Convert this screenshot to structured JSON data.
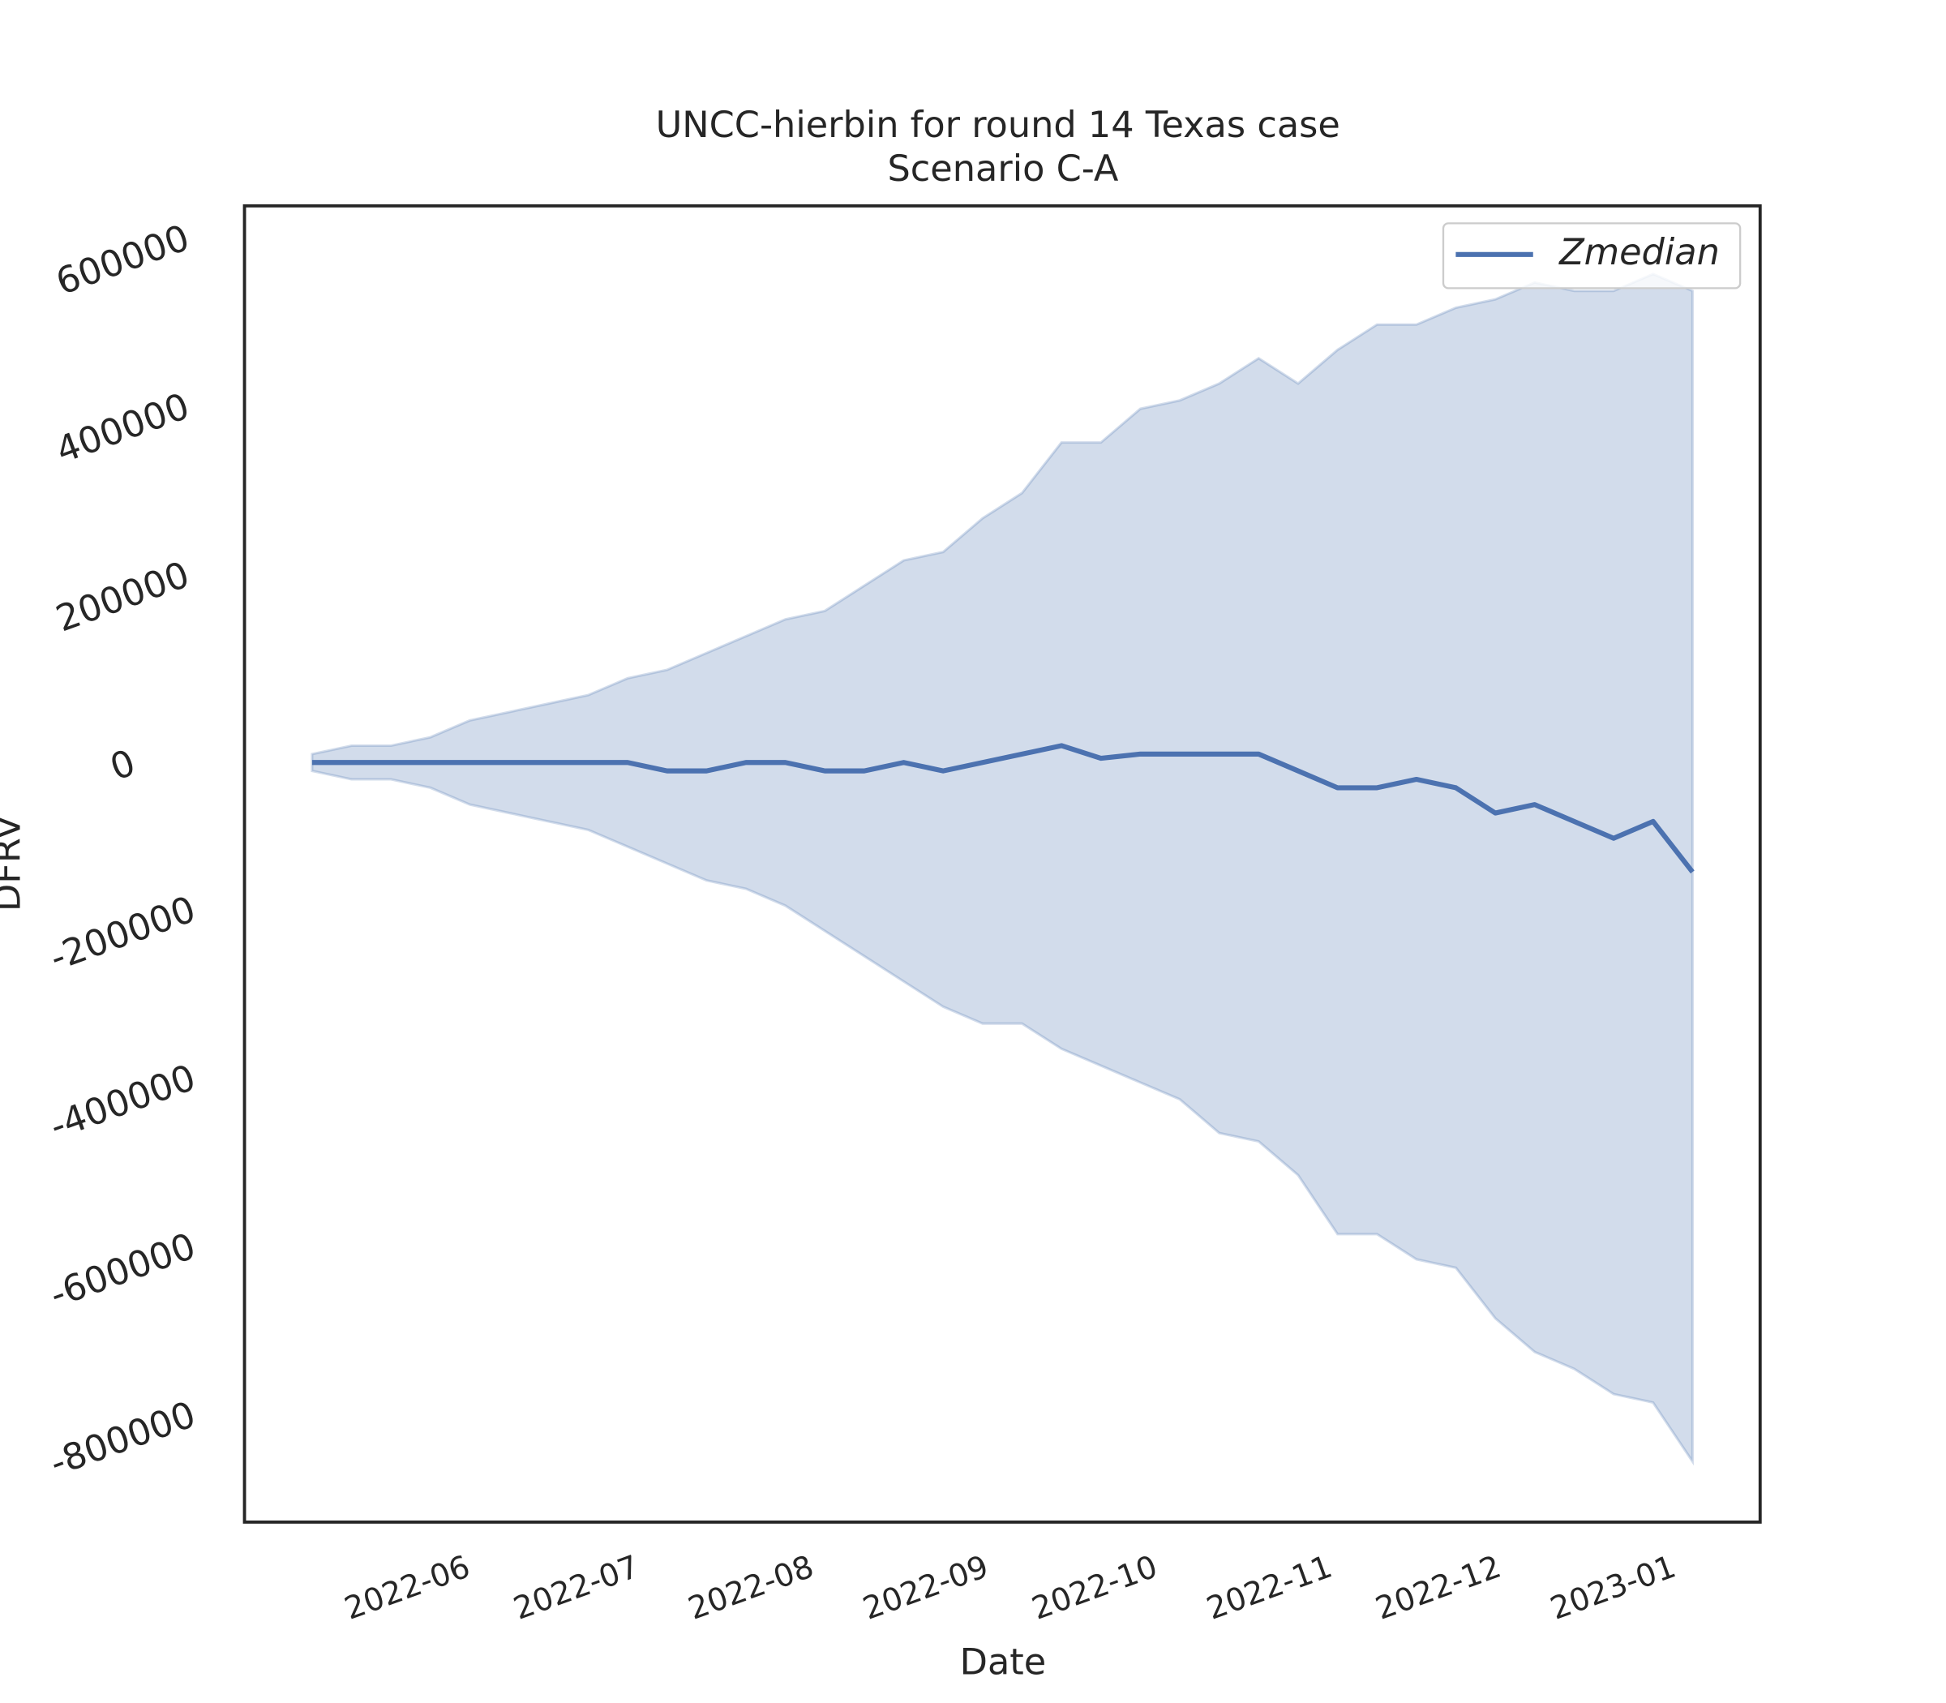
{
  "chart_data": {
    "type": "line",
    "title": "UNCC-hierbin for round 14 Texas case",
    "subtitle": "Scenario C-A",
    "x_label": "Date",
    "y_label": "DFRV",
    "x": [
      "2022-05-15",
      "2022-05-22",
      "2022-05-29",
      "2022-06-05",
      "2022-06-12",
      "2022-06-19",
      "2022-06-26",
      "2022-07-03",
      "2022-07-10",
      "2022-07-17",
      "2022-07-24",
      "2022-07-31",
      "2022-08-07",
      "2022-08-14",
      "2022-08-21",
      "2022-08-28",
      "2022-09-04",
      "2022-09-11",
      "2022-09-18",
      "2022-09-25",
      "2022-10-02",
      "2022-10-09",
      "2022-10-16",
      "2022-10-23",
      "2022-10-30",
      "2022-11-06",
      "2022-11-13",
      "2022-11-20",
      "2022-11-27",
      "2022-12-04",
      "2022-12-11",
      "2022-12-18",
      "2022-12-25",
      "2023-01-01",
      "2023-01-08",
      "2023-01-15"
    ],
    "series": [
      {
        "name": "Zmedian",
        "color": "#4c72b0",
        "values": [
          0,
          0,
          0,
          0,
          0,
          0,
          0,
          0,
          0,
          -10000,
          -10000,
          0,
          0,
          -10000,
          -10000,
          0,
          -10000,
          0,
          10000,
          20000,
          5000,
          10000,
          10000,
          10000,
          10000,
          -10000,
          -30000,
          -30000,
          -20000,
          -30000,
          -60000,
          -50000,
          -70000,
          -90000,
          -70000,
          -130000
        ]
      }
    ],
    "band": {
      "color": "#4c72b0",
      "upper": [
        10000,
        20000,
        20000,
        30000,
        50000,
        60000,
        70000,
        80000,
        100000,
        110000,
        130000,
        150000,
        170000,
        180000,
        210000,
        240000,
        250000,
        290000,
        320000,
        380000,
        380000,
        420000,
        430000,
        450000,
        480000,
        450000,
        490000,
        520000,
        520000,
        540000,
        550000,
        570000,
        560000,
        560000,
        580000,
        560000
      ],
      "lower": [
        -10000,
        -20000,
        -20000,
        -30000,
        -50000,
        -60000,
        -70000,
        -80000,
        -100000,
        -120000,
        -140000,
        -150000,
        -170000,
        -200000,
        -230000,
        -260000,
        -290000,
        -310000,
        -310000,
        -340000,
        -360000,
        -380000,
        -400000,
        -440000,
        -450000,
        -490000,
        -560000,
        -560000,
        -590000,
        -600000,
        -660000,
        -700000,
        -720000,
        -750000,
        -760000,
        -830000
      ]
    },
    "xlim": [
      "2022-05-03",
      "2023-01-27"
    ],
    "xticks": [
      {
        "value": "2022-06-01",
        "label": "2022-06"
      },
      {
        "value": "2022-07-01",
        "label": "2022-07"
      },
      {
        "value": "2022-08-01",
        "label": "2022-08"
      },
      {
        "value": "2022-09-01",
        "label": "2022-09"
      },
      {
        "value": "2022-10-01",
        "label": "2022-10"
      },
      {
        "value": "2022-11-01",
        "label": "2022-11"
      },
      {
        "value": "2022-12-01",
        "label": "2022-12"
      },
      {
        "value": "2023-01-01",
        "label": "2023-01"
      }
    ],
    "ylim": [
      -902000,
      661000
    ],
    "yticks": [
      -800000,
      -600000,
      -400000,
      -200000,
      0,
      200000,
      400000,
      600000
    ],
    "legend": "upper right"
  }
}
